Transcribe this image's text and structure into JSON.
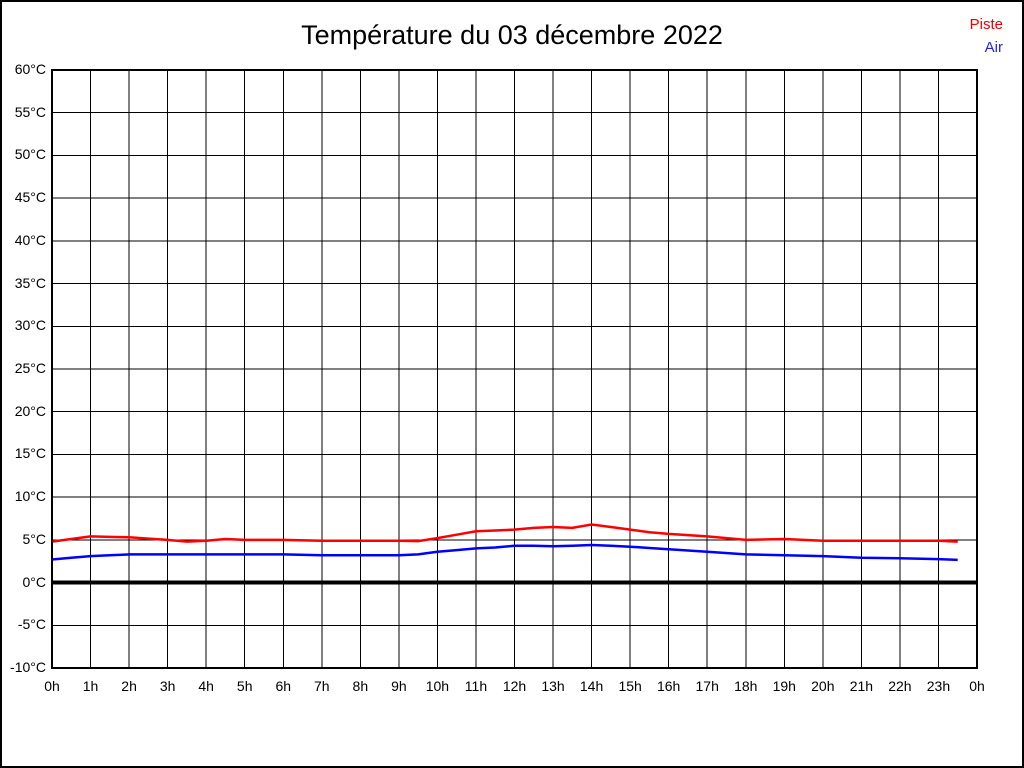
{
  "title": "Température du 03 décembre 2022",
  "legend": [
    {
      "label": "Piste",
      "color": "#ee0000"
    },
    {
      "label": "Air",
      "color": "#2222ee"
    }
  ],
  "colors": {
    "piste_line": "#ff0000",
    "air_line": "#0000ff",
    "grid": "#000000",
    "zero_line": "#000000",
    "plot_border": "#000000"
  },
  "chart_data": {
    "type": "line",
    "title": "Température du 03 décembre 2022",
    "xlabel": "",
    "ylabel": "",
    "xlim": [
      0,
      24
    ],
    "ylim": [
      -10,
      60
    ],
    "grid": true,
    "legend_position": "top-right",
    "zero_line_at": 0,
    "ytick_values": [
      60,
      55,
      50,
      45,
      40,
      35,
      30,
      25,
      20,
      15,
      10,
      5,
      0,
      -5,
      -10
    ],
    "ytick_labels": [
      "60°C",
      "55°C",
      "50°C",
      "45°C",
      "40°C",
      "35°C",
      "30°C",
      "25°C",
      "20°C",
      "15°C",
      "10°C",
      "5°C",
      "0°C",
      "-5°C",
      "-10°C"
    ],
    "xtick_values": [
      0,
      1,
      2,
      3,
      4,
      5,
      6,
      7,
      8,
      9,
      10,
      11,
      12,
      13,
      14,
      15,
      16,
      17,
      18,
      19,
      20,
      21,
      22,
      23,
      24
    ],
    "xtick_labels": [
      "0h",
      "1h",
      "2h",
      "3h",
      "4h",
      "5h",
      "6h",
      "7h",
      "8h",
      "9h",
      "10h",
      "11h",
      "12h",
      "13h",
      "14h",
      "15h",
      "16h",
      "17h",
      "18h",
      "19h",
      "20h",
      "21h",
      "22h",
      "23h",
      "0h"
    ],
    "x": [
      0,
      0.5,
      1,
      1.5,
      2,
      2.5,
      3,
      3.5,
      4,
      4.5,
      5,
      6,
      7,
      8,
      9,
      9.5,
      10,
      10.5,
      11,
      11.5,
      12,
      12.5,
      13,
      13.5,
      14,
      14.5,
      15,
      15.5,
      16,
      17,
      18,
      19,
      20,
      21,
      22,
      23,
      23.5
    ],
    "series": [
      {
        "name": "Piste",
        "color": "#ff0000",
        "values": [
          4.8,
          5.1,
          5.4,
          5.35,
          5.3,
          5.15,
          5.0,
          4.8,
          4.9,
          5.1,
          5.0,
          5.0,
          4.9,
          4.9,
          4.9,
          4.85,
          5.2,
          5.6,
          6.0,
          6.1,
          6.2,
          6.4,
          6.5,
          6.4,
          6.8,
          6.5,
          6.2,
          5.9,
          5.7,
          5.4,
          5.0,
          5.1,
          4.9,
          4.9,
          4.9,
          4.9,
          4.8
        ]
      },
      {
        "name": "Air",
        "color": "#0000ff",
        "values": [
          2.7,
          2.9,
          3.1,
          3.2,
          3.3,
          3.3,
          3.3,
          3.3,
          3.3,
          3.3,
          3.3,
          3.3,
          3.2,
          3.2,
          3.2,
          3.3,
          3.6,
          3.8,
          4.0,
          4.1,
          4.3,
          4.3,
          4.25,
          4.3,
          4.4,
          4.3,
          4.2,
          4.05,
          3.9,
          3.6,
          3.3,
          3.2,
          3.1,
          2.9,
          2.85,
          2.75,
          2.65
        ]
      }
    ]
  }
}
